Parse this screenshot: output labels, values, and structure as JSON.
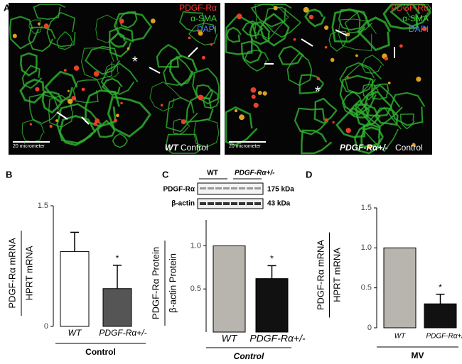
{
  "panel_a": {
    "label": "A",
    "left": {
      "legend": [
        "PDGF-Rα",
        "α-SMA",
        "DAPI"
      ],
      "scale": "20 micrometer",
      "genotype": "WT",
      "condition": "Control",
      "asterisk": "*"
    },
    "right": {
      "legend": [
        "PDGF-Rα",
        "α-SMA",
        "DAPI"
      ],
      "scale": "20 micrometer",
      "genotype": "PDGF-Rα+/-",
      "condition": "Control",
      "asterisk": "*"
    }
  },
  "blot": {
    "groups": [
      "WT",
      "PDGF-Rα+/-"
    ],
    "rows": [
      {
        "name": "PDGF-Rα",
        "size": "175 kDa"
      },
      {
        "name": "β-actin",
        "size": "43 kDa"
      }
    ]
  },
  "chart_data": [
    {
      "type": "bar",
      "label": "B",
      "ylabel_top": "PDGF-Rα mRNA",
      "ylabel_bottom": "HPRT mRNA",
      "categories": [
        "WT",
        "PDGF-Rα+/-"
      ],
      "values": [
        0.93,
        0.47
      ],
      "errors": [
        0.24,
        0.29
      ],
      "colors": [
        "#ffffff",
        "#555555"
      ],
      "significance": [
        null,
        "*"
      ],
      "ylim": [
        0,
        1.5
      ],
      "yticks": [
        0,
        1.5
      ],
      "group_label": "Control"
    },
    {
      "type": "bar",
      "label": "C",
      "ylabel_top": "PDGF-Rα Protein",
      "ylabel_bottom": "β-actin Protein",
      "categories": [
        "WT",
        "PDGF-Rα+/-"
      ],
      "values": [
        1,
        0.62
      ],
      "errors": [
        null,
        0.15
      ],
      "colors": [
        "#b8b4ae",
        "#111111"
      ],
      "significance": [
        null,
        "*"
      ],
      "ylim": [
        0,
        1.3
      ],
      "yticks": [
        0.5,
        {
          "value": 1,
          "label": "1.0"
        }
      ],
      "group_label": "Control"
    },
    {
      "type": "bar",
      "label": "D",
      "ylabel_top": "PDGF-Rα mRNA",
      "ylabel_bottom": "HPRT mRNA",
      "categories": [
        "WT",
        "PDGF-Rα+/-"
      ],
      "values": [
        1,
        0.3
      ],
      "errors": [
        null,
        0.12
      ],
      "colors": [
        "#b8b4ae",
        "#111111"
      ],
      "significance": [
        null,
        "*"
      ],
      "ylim": [
        0,
        1.5
      ],
      "yticks": [
        0,
        0.5,
        {
          "value": 1,
          "label": "1.0"
        },
        1.5
      ],
      "group_label": "MV"
    }
  ]
}
